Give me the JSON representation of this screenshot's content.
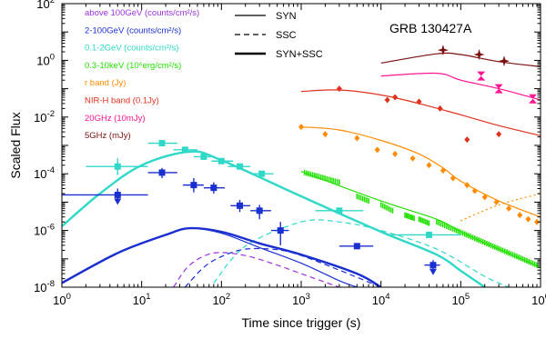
{
  "chart_data": {
    "type": "line",
    "title": "",
    "annotation": "GRB 130427A",
    "xlabel": "Time since trigger (s)",
    "ylabel": "Scaled Flux",
    "xscale": "log",
    "yscale": "log",
    "xlim": [
      1,
      1000000
    ],
    "ylim": [
      1e-08,
      100
    ],
    "grid": false,
    "x_tick_labels": [
      {
        "v": 1,
        "base": "10",
        "exp": "0"
      },
      {
        "v": 10,
        "base": "10",
        "exp": "1"
      },
      {
        "v": 100,
        "base": "10",
        "exp": "2"
      },
      {
        "v": 1000,
        "base": "10",
        "exp": "3"
      },
      {
        "v": 10000,
        "base": "10",
        "exp": "4"
      },
      {
        "v": 100000,
        "base": "10",
        "exp": "5"
      },
      {
        "v": 1000000,
        "base": "10",
        "exp": "6"
      }
    ],
    "y_tick_labels": [
      {
        "v": 1e-08,
        "base": "10",
        "exp": "-8"
      },
      {
        "v": 1e-06,
        "base": "10",
        "exp": "-6"
      },
      {
        "v": 0.0001,
        "base": "10",
        "exp": "-4"
      },
      {
        "v": 0.01,
        "base": "10",
        "exp": "-2"
      },
      {
        "v": 1,
        "base": "10",
        "exp": "0"
      },
      {
        "v": 100,
        "base": "10",
        "exp": "2"
      }
    ],
    "legend_bands": [
      {
        "label": "above 100GeV (counts/cm²/s)",
        "color": "#9b30d9"
      },
      {
        "label": "2-100GeV (counts/cm²/s)",
        "color": "#1a2fd0"
      },
      {
        "label": "0.1-2GeV (counts/cm²/s)",
        "color": "#30d8c8"
      },
      {
        "label": "0.3-10keV (10⁶erg/cm²/s)",
        "color": "#22e000"
      },
      {
        "label": "r band (Jy)",
        "color": "#ff8c00"
      },
      {
        "label": "NIR-H band (0.1Jy)",
        "color": "#e0301e"
      },
      {
        "label": "20GHz (10mJy)",
        "color": "#ff1493"
      },
      {
        "label": "5GHz (mJy)",
        "color": "#7a1010"
      }
    ],
    "legend_styles": [
      {
        "label": "SYN",
        "dash": "",
        "width": 1.2
      },
      {
        "label": "SSC",
        "dash": "6,4",
        "width": 1.2
      },
      {
        "label": "SYN+SSC",
        "dash": "",
        "width": 2.6
      }
    ],
    "series": [
      {
        "color": "#30d8c8",
        "width": 2.4,
        "dash": "",
        "points": [
          [
            1,
            1.4e-06
          ],
          [
            3,
            2e-05
          ],
          [
            10,
            0.0002
          ],
          [
            40,
            0.0006
          ],
          [
            100,
            0.0003
          ],
          [
            1000,
            1.6e-05
          ],
          [
            10000,
            9e-07
          ],
          [
            50000,
            1.4e-07
          ],
          [
            100000,
            3.8e-08
          ],
          [
            200000,
            1e-08
          ]
        ]
      },
      {
        "color": "#30d8c8",
        "width": 1.2,
        "dash": "6,4",
        "points": [
          [
            80,
            1.4e-08
          ],
          [
            200,
            2.8e-07
          ],
          [
            1000,
            2e-06
          ],
          [
            3000,
            2e-06
          ],
          [
            10000,
            1e-06
          ],
          [
            50000,
            2.2e-07
          ],
          [
            200000,
            2.4e-08
          ],
          [
            400000,
            1e-08
          ]
        ]
      },
      {
        "color": "#1a2fd0",
        "width": 2.4,
        "dash": "",
        "points": [
          [
            1,
            1.4e-08
          ],
          [
            5,
            1.6e-07
          ],
          [
            20,
            7e-07
          ],
          [
            40,
            1.2e-06
          ],
          [
            100,
            9e-07
          ],
          [
            300,
            3.5e-07
          ],
          [
            1000,
            1.4e-07
          ],
          [
            5000,
            3e-08
          ],
          [
            10000,
            1e-08
          ]
        ]
      },
      {
        "color": "#1a2fd0",
        "width": 1.2,
        "dash": "",
        "points": [
          [
            1,
            1.4e-08
          ],
          [
            5,
            1.6e-07
          ],
          [
            20,
            7e-07
          ],
          [
            40,
            1.2e-06
          ],
          [
            100,
            8e-07
          ],
          [
            300,
            2.5e-07
          ],
          [
            1000,
            7e-08
          ],
          [
            3000,
            1.7e-08
          ],
          [
            5000,
            1e-08
          ]
        ]
      },
      {
        "color": "#1a2fd0",
        "width": 1.2,
        "dash": "6,4",
        "points": [
          [
            35,
            1e-08
          ],
          [
            60,
            5e-08
          ],
          [
            100,
            1.2e-07
          ],
          [
            200,
            2.2e-07
          ],
          [
            500,
            2.1e-07
          ],
          [
            1000,
            1.3e-07
          ],
          [
            3000,
            4e-08
          ],
          [
            10000,
            1e-08
          ]
        ]
      },
      {
        "color": "#9b30d9",
        "width": 1.2,
        "dash": "6,4",
        "points": [
          [
            25,
            1e-08
          ],
          [
            40,
            6e-08
          ],
          [
            80,
            1.6e-07
          ],
          [
            200,
            1.3e-07
          ],
          [
            500,
            6e-08
          ],
          [
            1000,
            3e-08
          ],
          [
            3000,
            1e-08
          ]
        ]
      },
      {
        "color": "#22e000",
        "width": 1.2,
        "dash": "",
        "points": [
          [
            1000,
            0.00012
          ],
          [
            10000,
            1.1e-05
          ],
          [
            50000,
            2.5e-06
          ],
          [
            100000,
            9e-07
          ],
          [
            300000,
            2.2e-07
          ],
          [
            1000000,
            5e-08
          ]
        ]
      },
      {
        "color": "#ff8c00",
        "width": 1.2,
        "dash": "",
        "points": [
          [
            1000,
            0.0045
          ],
          [
            3000,
            0.0035
          ],
          [
            10000,
            0.0015
          ],
          [
            30000,
            0.0005
          ],
          [
            60000,
            0.00016
          ],
          [
            100000,
            5.5e-05
          ],
          [
            300000,
            1.1e-05
          ],
          [
            1000000,
            3e-06
          ]
        ]
      },
      {
        "color": "#ff8c00",
        "width": 1.2,
        "dash": "2,3",
        "points": [
          [
            100000,
            2.2e-06
          ],
          [
            300000,
            8e-06
          ],
          [
            1000000,
            2e-05
          ]
        ]
      },
      {
        "color": "#e0301e",
        "width": 1.2,
        "dash": "",
        "points": [
          [
            1000,
            0.08
          ],
          [
            3000,
            0.09
          ],
          [
            10000,
            0.06
          ],
          [
            30000,
            0.03
          ],
          [
            100000,
            0.012
          ],
          [
            300000,
            0.005
          ],
          [
            1000000,
            0.0022
          ]
        ]
      },
      {
        "color": "#ff1493",
        "width": 1.2,
        "dash": "",
        "points": [
          [
            10000,
            0.28
          ],
          [
            50000,
            0.35
          ],
          [
            100000,
            0.2
          ],
          [
            300000,
            0.1
          ],
          [
            1000000,
            0.04
          ]
        ]
      },
      {
        "color": "#7a1010",
        "width": 1.2,
        "dash": "",
        "points": [
          [
            10000,
            0.8
          ],
          [
            50000,
            1.7
          ],
          [
            100000,
            1.6
          ],
          [
            300000,
            0.9
          ],
          [
            1000000,
            0.6
          ]
        ]
      }
    ],
    "measurements": [
      {
        "x": 5,
        "y": 0.00018,
        "xlo": 2,
        "xhi": 12,
        "ylo": 9e-05,
        "yhi": 0.00035,
        "color": "#30d8c8"
      },
      {
        "x": 18,
        "y": 0.0012,
        "xlo": 12,
        "xhi": 28,
        "color": "#30d8c8"
      },
      {
        "x": 35,
        "y": 0.0007,
        "xlo": 25,
        "xhi": 50,
        "color": "#30d8c8"
      },
      {
        "x": 60,
        "y": 0.0004,
        "xlo": 45,
        "xhi": 80,
        "color": "#30d8c8"
      },
      {
        "x": 100,
        "y": 0.00028,
        "xlo": 75,
        "xhi": 140,
        "color": "#30d8c8"
      },
      {
        "x": 170,
        "y": 0.00018,
        "xlo": 120,
        "xhi": 230,
        "color": "#30d8c8"
      },
      {
        "x": 320,
        "y": 0.0001,
        "xlo": 230,
        "xhi": 450,
        "color": "#30d8c8"
      },
      {
        "x": 3000,
        "y": 5e-06,
        "xlo": 1500,
        "xhi": 6000,
        "color": "#30d8c8"
      },
      {
        "x": 40000,
        "y": 7e-07,
        "xlo": 12000,
        "xhi": 100000,
        "color": "#30d8c8"
      },
      {
        "x": 5,
        "y": 1.8e-05,
        "xlo": 1,
        "xhi": 12,
        "ylo": 1e-05,
        "yhi": 3e-05,
        "color": "#1a2fd0",
        "ul": true
      },
      {
        "x": 18,
        "y": 0.00011,
        "xlo": 12,
        "xhi": 28,
        "ylo": 7e-05,
        "yhi": 0.00016,
        "color": "#1a2fd0"
      },
      {
        "x": 45,
        "y": 4e-05,
        "xlo": 33,
        "xhi": 60,
        "ylo": 2.2e-05,
        "yhi": 7e-05,
        "color": "#1a2fd0"
      },
      {
        "x": 80,
        "y": 3.2e-05,
        "xlo": 60,
        "xhi": 110,
        "ylo": 2e-05,
        "yhi": 5e-05,
        "color": "#1a2fd0"
      },
      {
        "x": 170,
        "y": 7.5e-06,
        "xlo": 130,
        "xhi": 230,
        "ylo": 4.5e-06,
        "yhi": 1.2e-05,
        "color": "#1a2fd0"
      },
      {
        "x": 300,
        "y": 5e-06,
        "xlo": 230,
        "xhi": 420,
        "ylo": 2.5e-06,
        "yhi": 8e-06,
        "color": "#1a2fd0"
      },
      {
        "x": 550,
        "y": 1e-06,
        "xlo": 420,
        "xhi": 700,
        "ylo": 3e-07,
        "yhi": 2e-06,
        "color": "#1a2fd0"
      },
      {
        "x": 5000,
        "y": 2.8e-07,
        "xlo": 3000,
        "xhi": 8000,
        "color": "#1a2fd0"
      },
      {
        "x": 45000,
        "y": 6e-08,
        "xlo": 35000,
        "xhi": 55000,
        "ylo": 3e-08,
        "yhi": 9e-08,
        "color": "#1a2fd0",
        "ul": true
      },
      {
        "x": 60000,
        "y": 2.3,
        "color": "#7a1010",
        "shape": "star"
      },
      {
        "x": 170000,
        "y": 1.6,
        "color": "#7a1010",
        "shape": "star"
      },
      {
        "x": 350000,
        "y": 0.95,
        "color": "#7a1010",
        "shape": "star"
      },
      {
        "x": 180000,
        "y": 0.28,
        "color": "#ff1493",
        "shape": "bowtie"
      },
      {
        "x": 300000,
        "y": 0.1,
        "color": "#ff1493",
        "shape": "bowtie"
      },
      {
        "x": 800000,
        "y": 0.044,
        "color": "#ff1493",
        "shape": "bowtie"
      },
      {
        "x": 3000,
        "y": 0.1,
        "color": "#e0301e",
        "shape": "diamond"
      },
      {
        "x": 12000,
        "y": 0.04,
        "color": "#e0301e",
        "shape": "diamond"
      },
      {
        "x": 15000,
        "y": 0.05,
        "color": "#e0301e",
        "shape": "diamond"
      },
      {
        "x": 30000,
        "y": 0.035,
        "color": "#e0301e",
        "shape": "diamond"
      },
      {
        "x": 55000,
        "y": 0.02,
        "color": "#e0301e",
        "shape": "diamond"
      },
      {
        "x": 120000,
        "y": 0.0016,
        "color": "#e0301e",
        "shape": "diamond"
      },
      {
        "x": 300000,
        "y": 0.0025,
        "color": "#e0301e",
        "shape": "diamond"
      },
      {
        "x": 1000,
        "y": 0.0045,
        "color": "#ff8c00",
        "shape": "diamond"
      },
      {
        "x": 2000,
        "y": 0.0025,
        "color": "#ff8c00",
        "shape": "diamond"
      },
      {
        "x": 5000,
        "y": 0.0018,
        "color": "#ff8c00",
        "shape": "diamond"
      },
      {
        "x": 9000,
        "y": 0.0007,
        "color": "#ff8c00",
        "shape": "diamond"
      },
      {
        "x": 15000,
        "y": 0.0005,
        "color": "#ff8c00",
        "shape": "diamond"
      },
      {
        "x": 25000,
        "y": 0.00035,
        "color": "#ff8c00",
        "shape": "diamond"
      },
      {
        "x": 40000,
        "y": 0.0002,
        "color": "#ff8c00",
        "shape": "diamond"
      },
      {
        "x": 60000,
        "y": 0.00013,
        "color": "#ff8c00",
        "shape": "diamond"
      },
      {
        "x": 80000,
        "y": 7e-05,
        "color": "#ff8c00",
        "shape": "diamond"
      },
      {
        "x": 120000,
        "y": 4e-05,
        "color": "#ff8c00",
        "shape": "diamond"
      },
      {
        "x": 150000,
        "y": 2.5e-05,
        "color": "#ff8c00",
        "shape": "diamond"
      },
      {
        "x": 200000,
        "y": 1.5e-05,
        "color": "#ff8c00",
        "shape": "diamond"
      },
      {
        "x": 280000,
        "y": 1e-05,
        "color": "#ff8c00",
        "shape": "diamond"
      },
      {
        "x": 400000,
        "y": 6e-06,
        "color": "#ff8c00",
        "shape": "diamond"
      },
      {
        "x": 550000,
        "y": 3.5e-06,
        "color": "#ff8c00",
        "shape": "diamond"
      },
      {
        "x": 700000,
        "y": 2.5e-06,
        "color": "#ff8c00",
        "shape": "diamond"
      },
      {
        "x": 900000,
        "y": 2e-06,
        "color": "#ff8c00",
        "shape": "diamond"
      }
    ],
    "xray_clusters": [
      {
        "x0": 1100,
        "x1": 3000,
        "y0": 0.00011,
        "y1": 5e-05,
        "color": "#22e000"
      },
      {
        "x0": 5000,
        "x1": 7000,
        "y0": 1.6e-05,
        "y1": 1.1e-05,
        "color": "#22e000"
      },
      {
        "x0": 10000,
        "x1": 14000,
        "y0": 8e-06,
        "y1": 5e-06,
        "color": "#22e000"
      },
      {
        "x0": 20000,
        "x1": 26000,
        "y0": 3.5e-06,
        "y1": 2.7e-06,
        "color": "#22e000"
      },
      {
        "x0": 30000,
        "x1": 40000,
        "y0": 2.5e-06,
        "y1": 1.8e-06,
        "color": "#22e000"
      },
      {
        "x0": 50000,
        "x1": 900000,
        "y0": 2e-06,
        "y1": 6e-08,
        "color": "#22e000"
      }
    ]
  }
}
